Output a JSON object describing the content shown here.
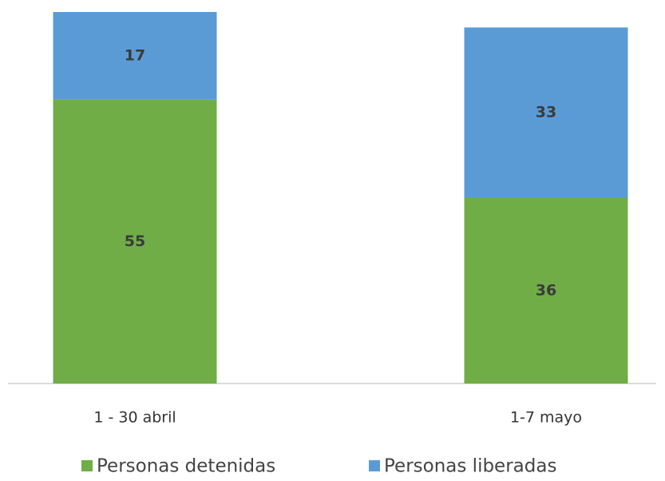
{
  "chart_data": {
    "type": "stacked_bar",
    "categories": [
      "1 - 30 abril",
      "1-7 mayo"
    ],
    "series": [
      {
        "name": "Personas detenidas",
        "color": "#70ad47",
        "values": [
          55,
          36
        ]
      },
      {
        "name": "Personas liberadas",
        "color": "#5b9bd5",
        "values": [
          17,
          33
        ]
      }
    ],
    "ylim": [
      0,
      72
    ],
    "legend": "bottom"
  }
}
